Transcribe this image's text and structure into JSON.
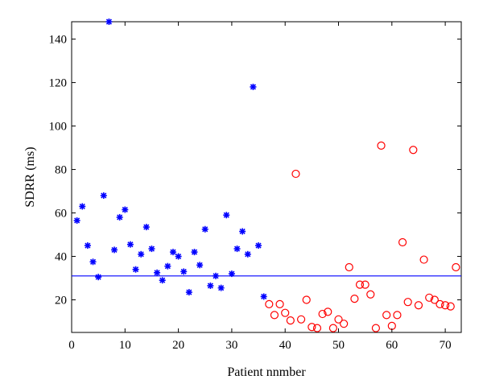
{
  "chart_data": {
    "type": "scatter",
    "xlabel": "Patient nnmber",
    "ylabel": "SDRR (ms)",
    "xlim": [
      0,
      73
    ],
    "ylim": [
      5,
      148
    ],
    "xticks": [
      0,
      10,
      20,
      30,
      40,
      50,
      60,
      70
    ],
    "yticks": [
      20,
      40,
      60,
      80,
      100,
      120,
      140
    ],
    "grid": false,
    "threshold_line": {
      "y": 31,
      "color": "#0000ff"
    },
    "series": [
      {
        "marker": "asterisk",
        "color": "#0000ff",
        "points": [
          [
            1,
            56.5
          ],
          [
            2,
            63
          ],
          [
            3,
            45
          ],
          [
            4,
            37.5
          ],
          [
            5,
            30.5
          ],
          [
            6,
            68
          ],
          [
            7,
            148
          ],
          [
            8,
            43
          ],
          [
            9,
            58
          ],
          [
            10,
            61.5
          ],
          [
            11,
            45.5
          ],
          [
            12,
            34
          ],
          [
            13,
            41
          ],
          [
            14,
            53.5
          ],
          [
            15,
            43.5
          ],
          [
            16,
            32.5
          ],
          [
            17,
            29
          ],
          [
            18,
            35.5
          ],
          [
            19,
            42
          ],
          [
            20,
            40
          ],
          [
            21,
            33
          ],
          [
            22,
            23.5
          ],
          [
            23,
            42
          ],
          [
            24,
            36
          ],
          [
            25,
            52.5
          ],
          [
            26,
            26.5
          ],
          [
            27,
            31
          ],
          [
            28,
            25.5
          ],
          [
            29,
            59
          ],
          [
            30,
            32
          ],
          [
            31,
            43.5
          ],
          [
            32,
            51.5
          ],
          [
            33,
            41
          ],
          [
            34,
            118
          ],
          [
            35,
            45
          ],
          [
            36,
            21.5
          ]
        ]
      },
      {
        "marker": "circle",
        "color": "#ff0000",
        "points": [
          [
            37,
            18
          ],
          [
            38,
            13
          ],
          [
            39,
            18
          ],
          [
            40,
            14
          ],
          [
            41,
            10.5
          ],
          [
            42,
            78
          ],
          [
            43,
            11
          ],
          [
            44,
            20
          ],
          [
            45,
            7.5
          ],
          [
            46,
            7
          ],
          [
            47,
            13.5
          ],
          [
            48,
            14.5
          ],
          [
            49,
            7
          ],
          [
            50,
            11
          ],
          [
            51,
            9
          ],
          [
            52,
            35
          ],
          [
            53,
            20.5
          ],
          [
            54,
            27
          ],
          [
            55,
            27
          ],
          [
            56,
            22.5
          ],
          [
            57,
            7
          ],
          [
            58,
            91
          ],
          [
            59,
            13
          ],
          [
            60,
            8
          ],
          [
            61,
            13
          ],
          [
            62,
            46.5
          ],
          [
            63,
            19
          ],
          [
            64,
            89
          ],
          [
            65,
            17.5
          ],
          [
            66,
            38.5
          ],
          [
            67,
            21
          ],
          [
            68,
            20
          ],
          [
            69,
            18
          ],
          [
            70,
            17.5
          ],
          [
            71,
            17
          ],
          [
            72,
            35
          ]
        ]
      }
    ]
  }
}
